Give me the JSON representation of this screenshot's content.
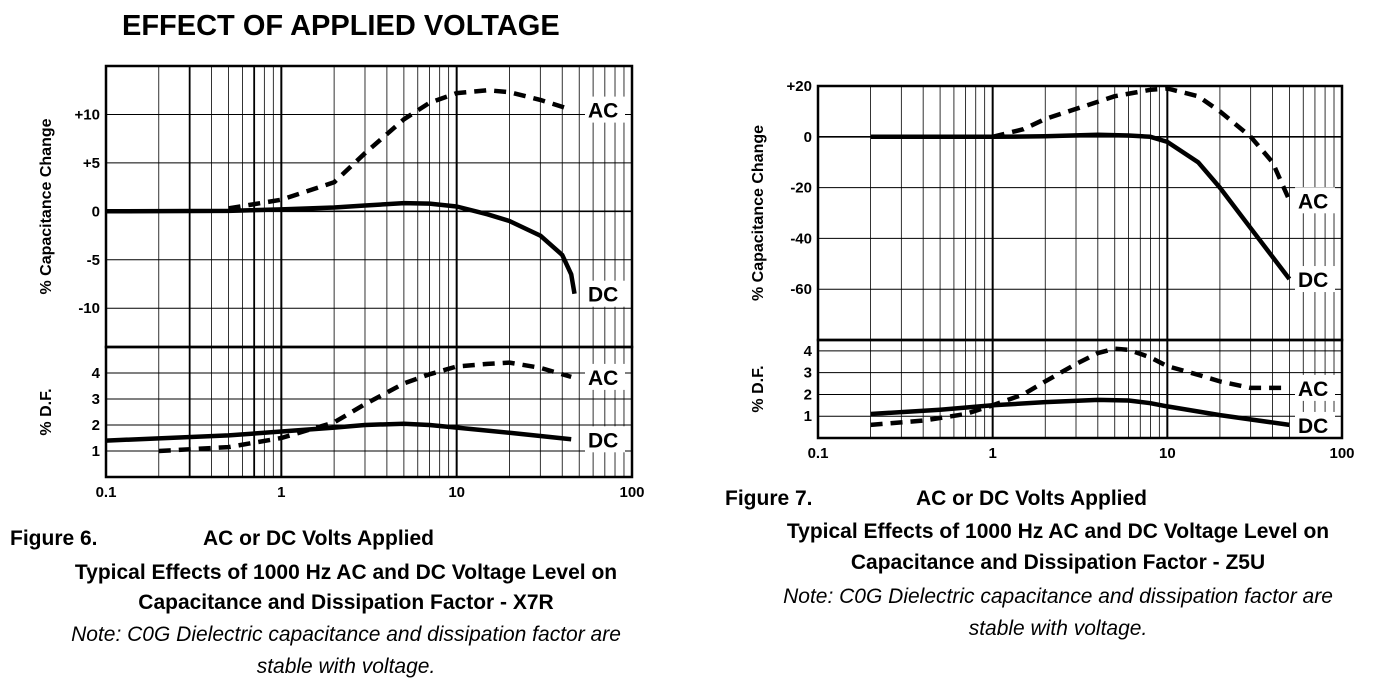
{
  "page": {
    "heading": "EFFECT OF APPLIED VOLTAGE"
  },
  "figure6": {
    "label": "Figure 6.",
    "xtitle": "AC or DC Volts Applied",
    "line1": "Typical Effects of 1000 Hz AC and DC Voltage Level on",
    "line2": "Capacitance and Dissipation Factor - X7R",
    "note1": "Note: C0G Dielectric capacitance and dissipation factor are",
    "note2": "stable with voltage."
  },
  "figure7": {
    "label": "Figure 7.",
    "xtitle": "AC or DC Volts Applied",
    "line1": "Typical Effects of 1000 Hz AC and DC Voltage Level on",
    "line2": "Capacitance and Dissipation Factor - Z5U",
    "note1": "Note: C0G Dielectric capacitance and dissipation factor are",
    "note2": "stable with voltage."
  },
  "chart_data": [
    {
      "id": "fig6",
      "type": "line",
      "x_scale": "log",
      "xlim": [
        0.1,
        100
      ],
      "x_ticks": [
        0.1,
        1,
        10,
        100
      ],
      "x_tick_labels": [
        "0.1",
        "1",
        "10",
        "100"
      ],
      "x_grid_minor": [
        0.3,
        0.7
      ],
      "panels": [
        {
          "name": "capacitance",
          "ylabel": "% Capacitance Change",
          "ylim": [
            -14,
            15
          ],
          "y_ticks": [
            10,
            5,
            0,
            -5,
            -10
          ],
          "y_tick_labels": [
            "+10",
            "+5",
            "0",
            "-5",
            "-10"
          ],
          "series": [
            {
              "name": "AC",
              "style": "dashed",
              "x": [
                0.5,
                1,
                2,
                3,
                5,
                7,
                10,
                15,
                20,
                30,
                45
              ],
              "y": [
                0.3,
                1.2,
                3,
                6,
                9.5,
                11.2,
                12.2,
                12.5,
                12.3,
                11.5,
                10.5
              ]
            },
            {
              "name": "DC",
              "style": "solid",
              "x": [
                0.1,
                0.5,
                1,
                2,
                3,
                5,
                7,
                10,
                15,
                20,
                30,
                40,
                45,
                47
              ],
              "y": [
                0,
                0.05,
                0.2,
                0.4,
                0.6,
                0.85,
                0.8,
                0.5,
                -0.3,
                -1,
                -2.5,
                -4.5,
                -6.5,
                -8.5
              ]
            }
          ]
        },
        {
          "name": "dissipation",
          "ylabel": "% D.F.",
          "ylim": [
            0,
            5
          ],
          "y_ticks": [
            4,
            3,
            2,
            1
          ],
          "y_tick_labels": [
            "4",
            "3",
            "2",
            "1"
          ],
          "series": [
            {
              "name": "AC",
              "style": "dashed",
              "x": [
                0.2,
                0.5,
                1,
                2,
                3,
                5,
                7,
                10,
                15,
                20,
                30,
                45
              ],
              "y": [
                1,
                1.15,
                1.5,
                2.1,
                2.8,
                3.6,
                3.95,
                4.25,
                4.35,
                4.4,
                4.2,
                3.85
              ]
            },
            {
              "name": "DC",
              "style": "solid",
              "x": [
                0.1,
                0.5,
                1,
                2,
                3,
                5,
                7,
                10,
                20,
                45
              ],
              "y": [
                1.4,
                1.6,
                1.75,
                1.9,
                2,
                2.05,
                2,
                1.9,
                1.7,
                1.45
              ]
            }
          ]
        }
      ]
    },
    {
      "id": "fig7",
      "type": "line",
      "x_scale": "log",
      "xlim": [
        0.1,
        100
      ],
      "x_ticks": [
        0.1,
        1,
        10,
        100
      ],
      "x_tick_labels": [
        "0.1",
        "1",
        "10",
        "100"
      ],
      "panels": [
        {
          "name": "capacitance",
          "ylabel": "% Capacitance Change",
          "ylim": [
            -80,
            20
          ],
          "y_ticks": [
            20,
            0,
            -20,
            -40,
            -60
          ],
          "y_tick_labels": [
            "+20",
            "0",
            "-20",
            "-40",
            "-60"
          ],
          "series": [
            {
              "name": "AC",
              "style": "dashed",
              "x": [
                1,
                1.5,
                2,
                3,
                5,
                8,
                10,
                15,
                20,
                30,
                40,
                50
              ],
              "y": [
                0,
                3,
                7,
                11,
                16,
                18.5,
                19,
                16,
                10,
                0,
                -10,
                -25
              ]
            },
            {
              "name": "DC",
              "style": "solid",
              "x": [
                0.2,
                1,
                2,
                4,
                6,
                8,
                10,
                15,
                20,
                30,
                50
              ],
              "y": [
                0,
                0,
                0.2,
                0.8,
                0.5,
                0,
                -2,
                -10,
                -20,
                -36,
                -56
              ]
            }
          ]
        },
        {
          "name": "dissipation",
          "ylabel": "% D.F.",
          "ylim": [
            0,
            4.5
          ],
          "y_ticks": [
            4,
            3,
            2,
            1
          ],
          "y_tick_labels": [
            "4",
            "3",
            "2",
            "1"
          ],
          "series": [
            {
              "name": "AC",
              "style": "dashed",
              "x": [
                0.2,
                0.4,
                0.7,
                1,
                1.5,
                2,
                3,
                4,
                5,
                6,
                8,
                10,
                15,
                20,
                30,
                50
              ],
              "y": [
                0.6,
                0.8,
                1.1,
                1.5,
                2,
                2.6,
                3.4,
                3.9,
                4.1,
                4.05,
                3.7,
                3.3,
                2.9,
                2.6,
                2.3,
                2.3
              ]
            },
            {
              "name": "DC",
              "style": "solid",
              "x": [
                0.2,
                0.5,
                1,
                2,
                4,
                6,
                8,
                10,
                20,
                50
              ],
              "y": [
                1.1,
                1.3,
                1.5,
                1.65,
                1.75,
                1.72,
                1.6,
                1.45,
                1.05,
                0.6
              ]
            }
          ]
        }
      ]
    }
  ]
}
